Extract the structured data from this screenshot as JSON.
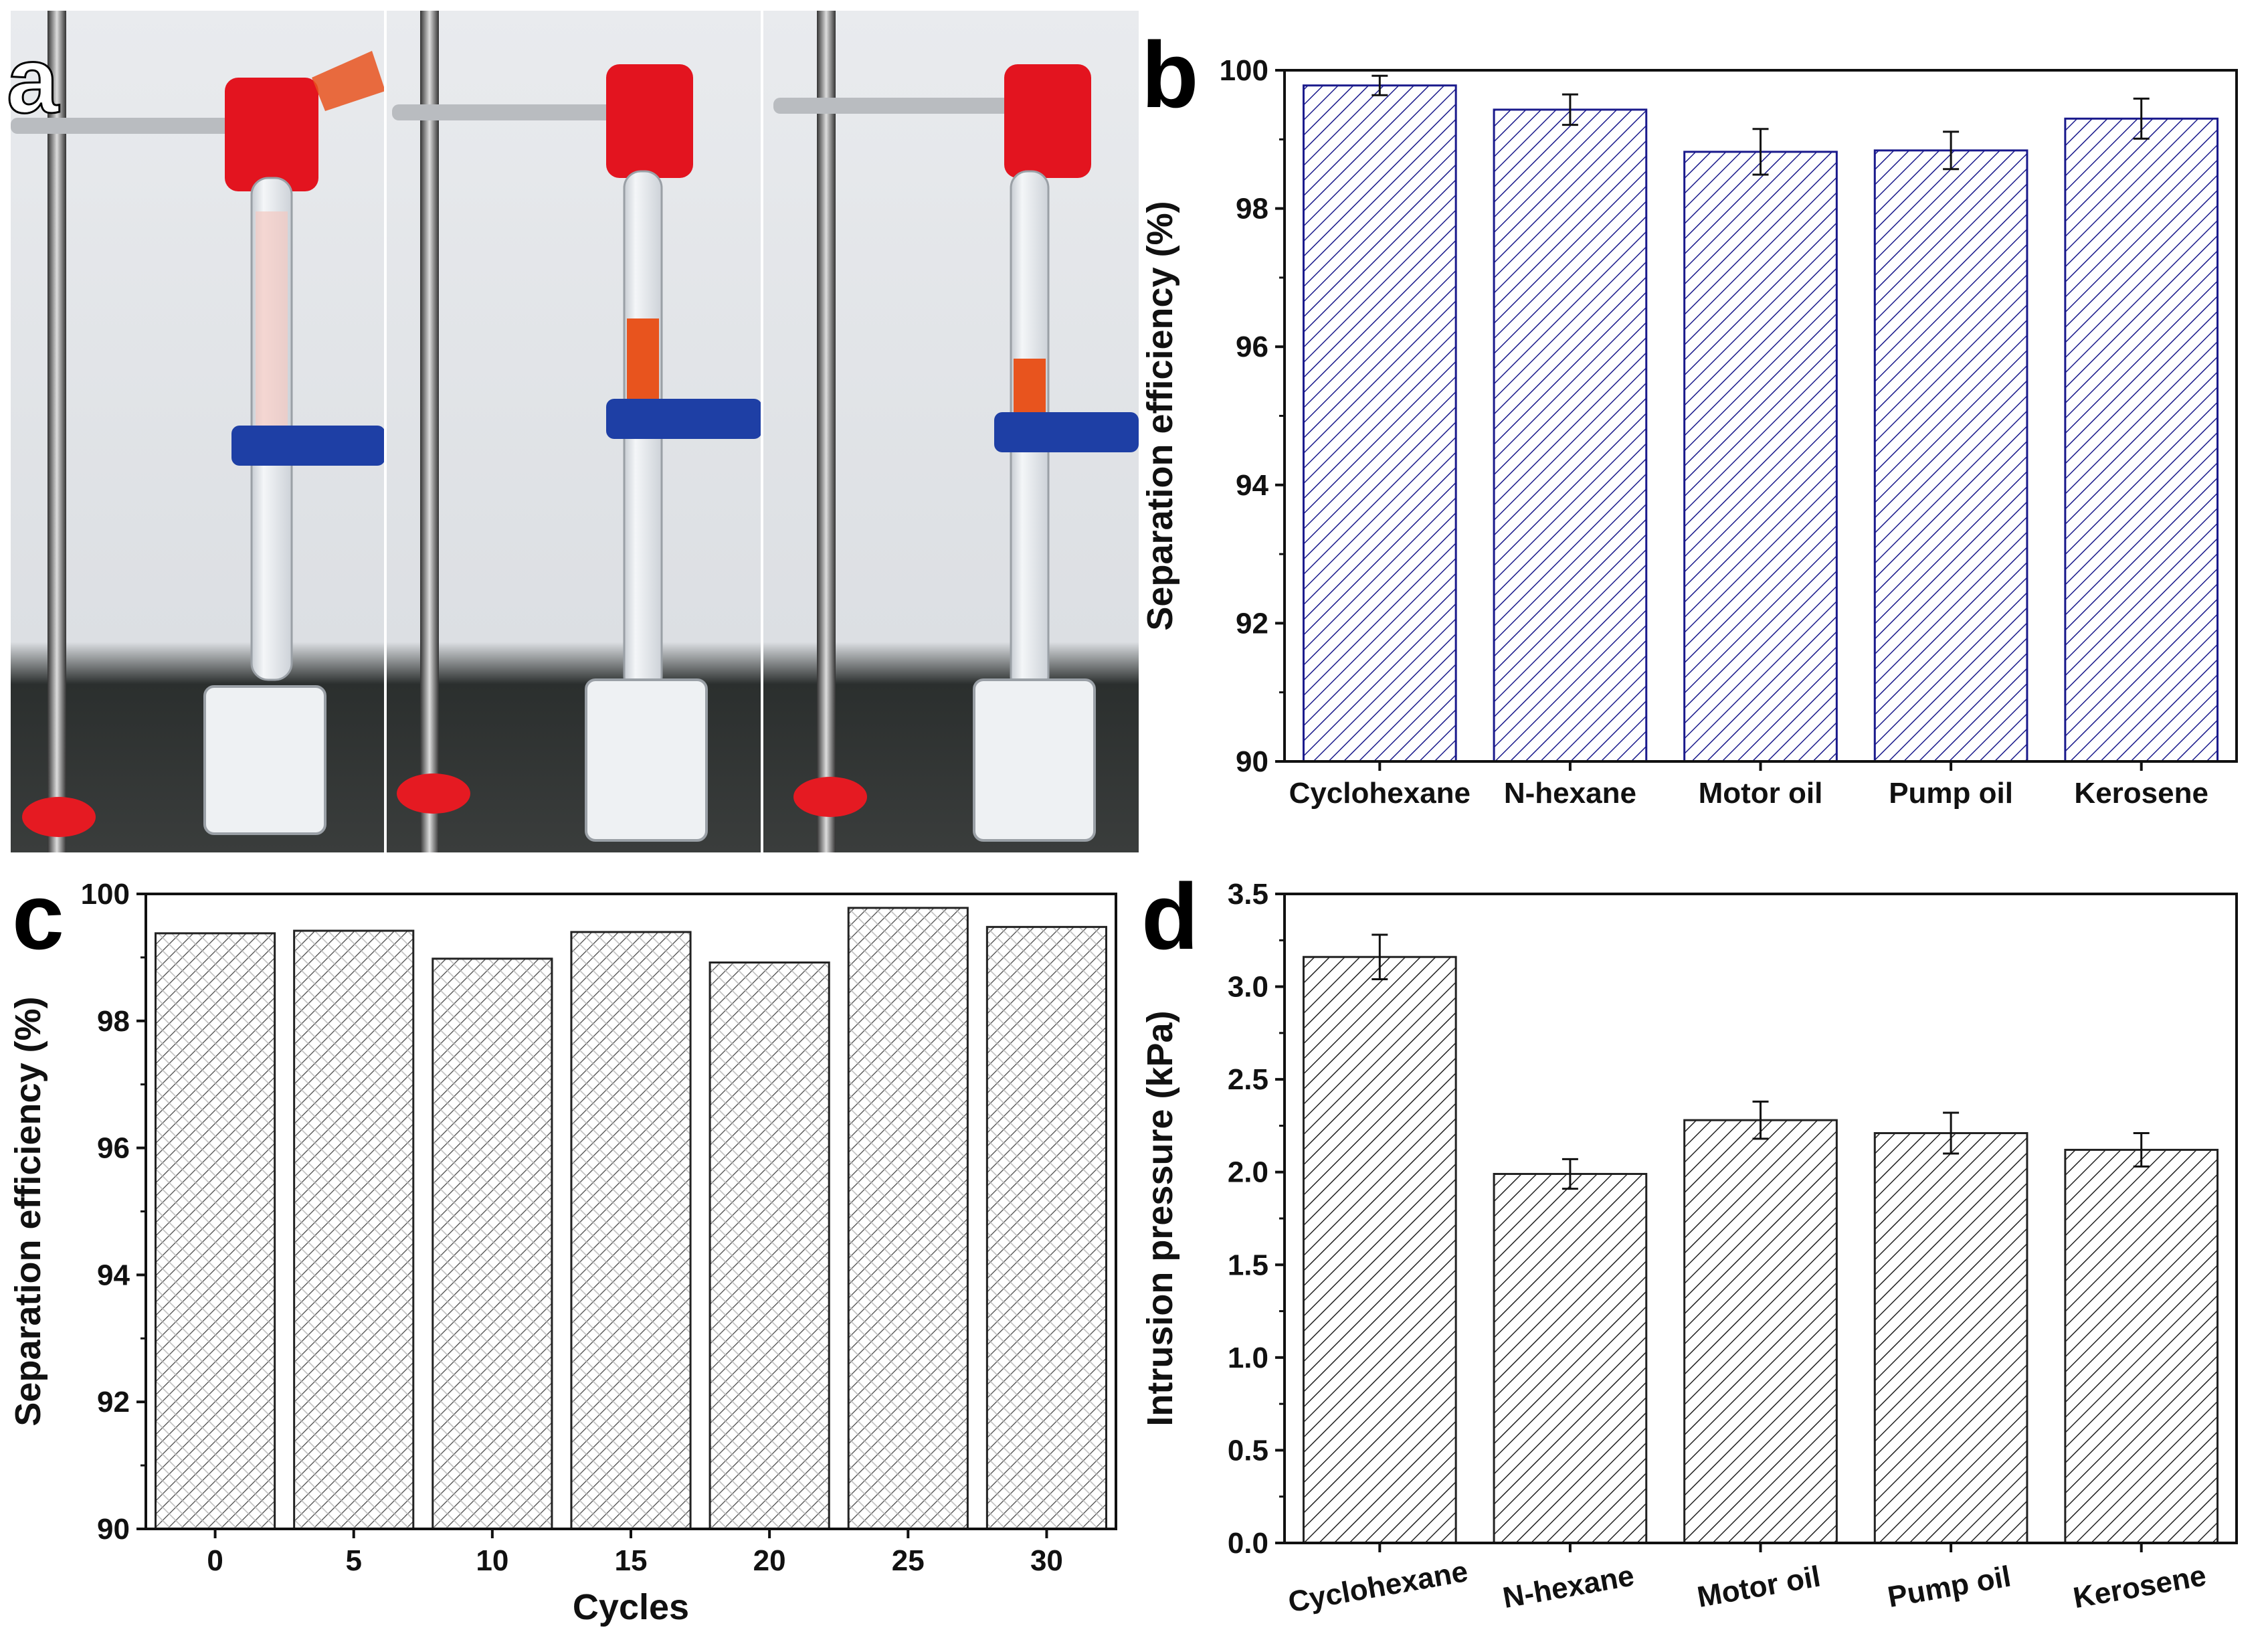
{
  "figure": {
    "panel_labels": [
      "a",
      "b",
      "c",
      "d"
    ]
  },
  "photo": {
    "description_icons": [
      "oil-water-separation-setup-photo"
    ],
    "colors": {
      "oil": "#e8541e",
      "clamp_red": "#e5141f",
      "clamp_blue": "#1e3fa5",
      "wall": "#dfe2e6"
    }
  },
  "chart_data": [
    {
      "panel": "b",
      "type": "bar",
      "categories": [
        "Cyclohexane",
        "N-hexane",
        "Motor oil",
        "Pump oil",
        "Kerosene"
      ],
      "values": [
        99.78,
        99.43,
        98.82,
        98.84,
        99.3
      ],
      "errors": [
        0.14,
        0.22,
        0.33,
        0.27,
        0.29
      ],
      "xlabel": "",
      "ylabel": "Separation efficiency (%)",
      "ylim": [
        90,
        100
      ],
      "yticks": [
        "90",
        "92",
        "94",
        "96",
        "98",
        "100"
      ],
      "pattern": "diagonal-hatch",
      "color": "#1a1a8c"
    },
    {
      "panel": "c",
      "type": "bar",
      "categories": [
        "0",
        "5",
        "10",
        "15",
        "20",
        "25",
        "30"
      ],
      "values": [
        99.38,
        99.42,
        98.98,
        99.4,
        98.92,
        99.78,
        99.48
      ],
      "xlabel": "Cycles",
      "ylabel": "Separation efficiency (%)",
      "ylim": [
        90,
        100
      ],
      "yticks": [
        "90",
        "92",
        "94",
        "96",
        "98",
        "100"
      ],
      "pattern": "diagonal-crosshatch",
      "color": "#333333"
    },
    {
      "panel": "d",
      "type": "bar",
      "categories": [
        "Cyclohexane",
        "N-hexane",
        "Motor oil",
        "Pump oil",
        "Kerosene"
      ],
      "values": [
        3.16,
        1.99,
        2.28,
        2.21,
        2.12
      ],
      "errors": [
        0.12,
        0.08,
        0.1,
        0.11,
        0.09
      ],
      "xlabel": "",
      "ylabel": "Intrusion pressure (kPa)",
      "ylim": [
        0.0,
        3.5
      ],
      "yticks": [
        "0.0",
        "0.5",
        "1.0",
        "1.5",
        "2.0",
        "2.5",
        "3.0",
        "3.5"
      ],
      "pattern": "diagonal-hatch",
      "color": "#222222",
      "rotated_xticks": true
    }
  ]
}
